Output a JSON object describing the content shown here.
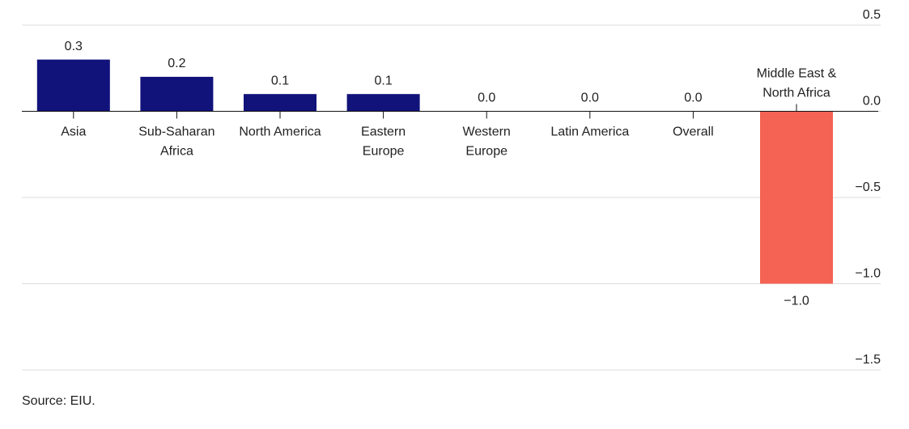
{
  "chart_data": {
    "type": "bar",
    "categories": [
      "Asia",
      "Sub-Saharan\nAfrica",
      "North America",
      "Eastern\nEurope",
      "Western\nEurope",
      "Latin America",
      "Overall",
      "Middle East &\nNorth Africa"
    ],
    "values": [
      0.3,
      0.2,
      0.1,
      0.1,
      0.0,
      0.0,
      0.0,
      -1.0
    ],
    "value_labels": [
      "0.3",
      "0.2",
      "0.1",
      "0.1",
      "0.0",
      "0.0",
      "0.0",
      "−1.0"
    ],
    "colors": [
      "#11127a",
      "#11127a",
      "#11127a",
      "#11127a",
      "#11127a",
      "#11127a",
      "#11127a",
      "#f46353"
    ],
    "ylim": [
      -1.5,
      0.5
    ],
    "yticks": [
      0.5,
      {
        "value": 0,
        "label": "0.0"
      },
      {
        "value": -0.5,
        "label": "−0.5"
      },
      {
        "value": -1,
        "label": "−1.0"
      },
      {
        "value": -1.5,
        "label": "−1.5"
      }
    ],
    "grid": true,
    "source": "Source: EIU."
  }
}
